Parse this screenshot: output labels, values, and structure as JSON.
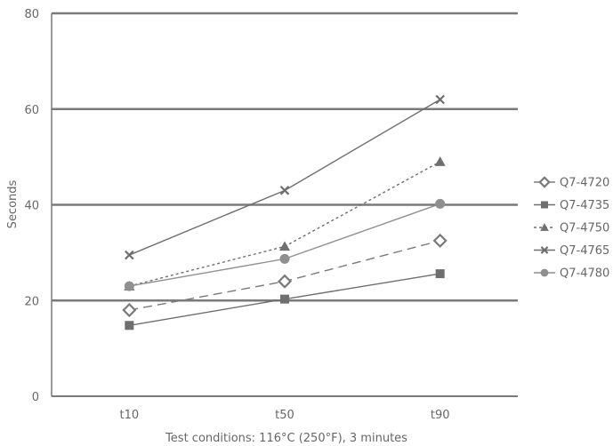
{
  "chart_data": {
    "type": "line",
    "xlabel": "Test conditions: 116°C (250°F), 3 minutes",
    "ylabel": "Seconds",
    "categories": [
      "t10",
      "t50",
      "t90"
    ],
    "ylim": [
      0,
      80
    ],
    "yticks": [
      0,
      20,
      40,
      60,
      80
    ],
    "grid": true,
    "legend_position": "right",
    "series": [
      {
        "name": "Q7-4720",
        "values": [
          18,
          24,
          32.5
        ],
        "marker": "diamond-open",
        "dash": "long-dash",
        "color": "#7a7a7a"
      },
      {
        "name": "Q7-4735",
        "values": [
          14.8,
          20.3,
          25.6
        ],
        "marker": "square",
        "dash": "solid",
        "color": "#6f6f6f"
      },
      {
        "name": "Q7-4750",
        "values": [
          23,
          31.3,
          49
        ],
        "marker": "triangle",
        "dash": "dotted",
        "color": "#6f6f6f"
      },
      {
        "name": "Q7-4765",
        "values": [
          29.5,
          43,
          62
        ],
        "marker": "x",
        "dash": "solid",
        "color": "#6f6f6f"
      },
      {
        "name": "Q7-4780",
        "values": [
          23,
          28.7,
          40.2
        ],
        "marker": "circle",
        "dash": "solid",
        "color": "#8f8f8f"
      }
    ]
  }
}
